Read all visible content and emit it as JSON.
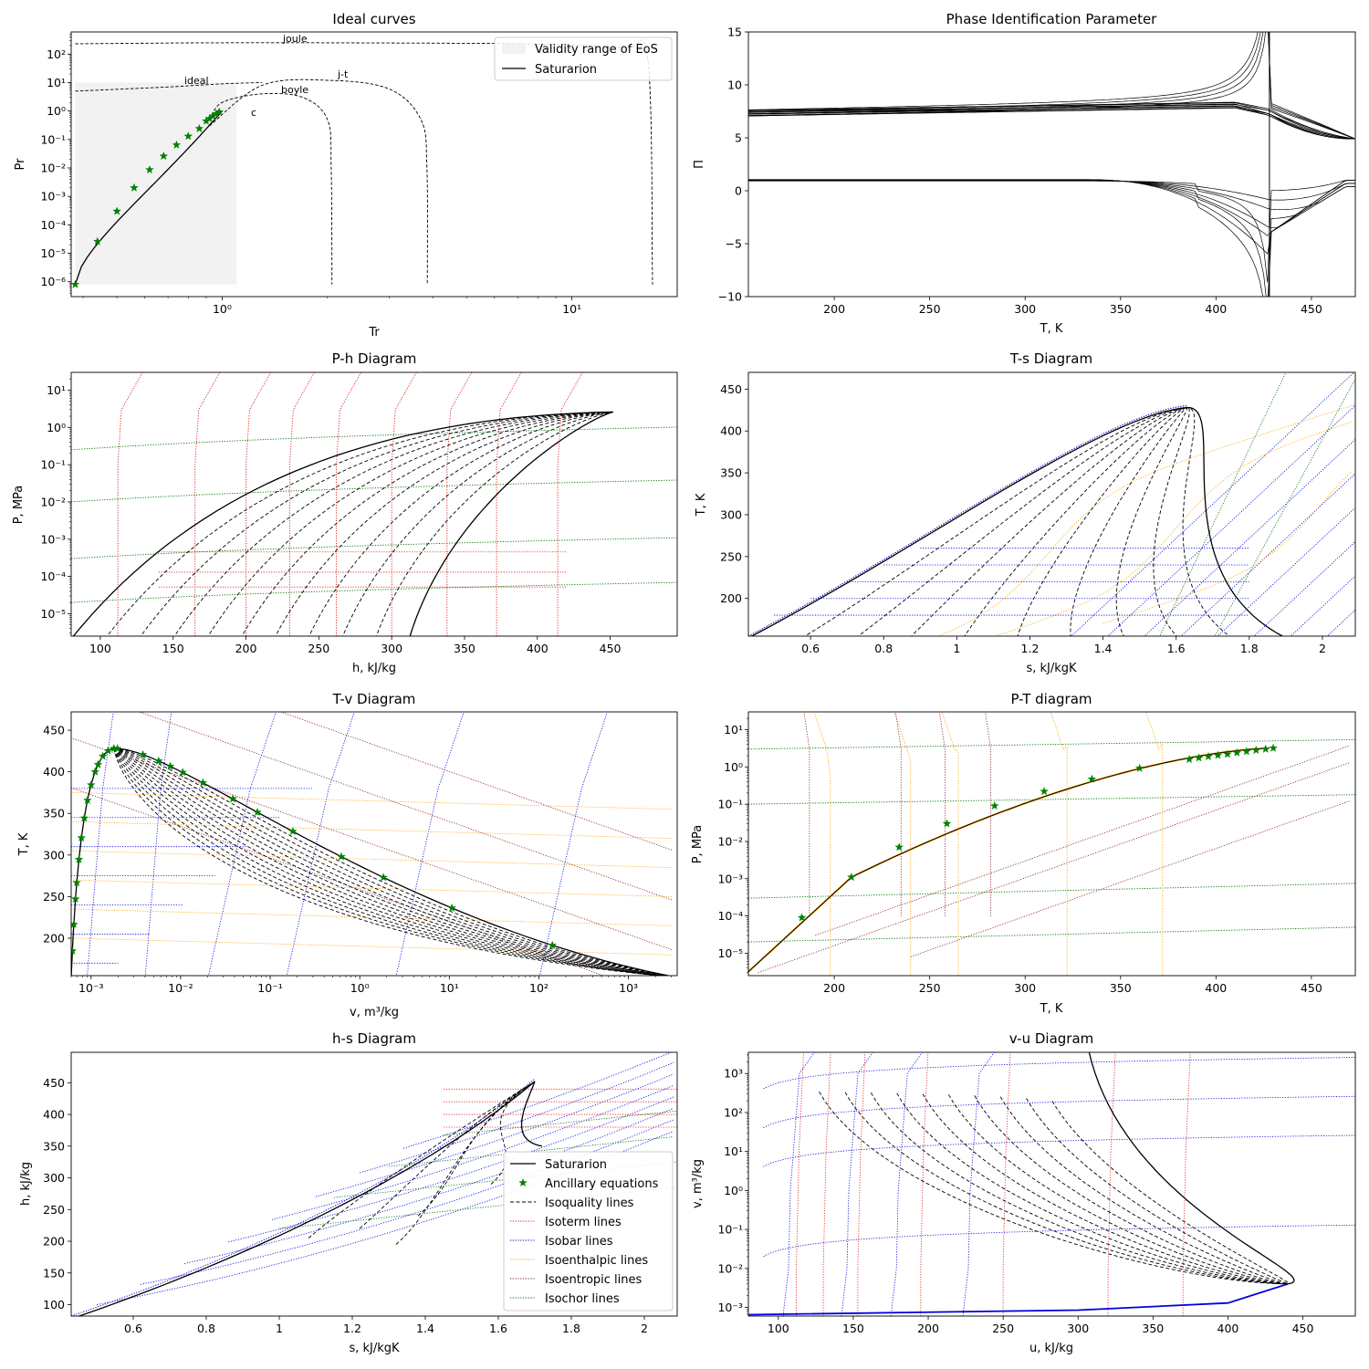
{
  "colors": {
    "saturation": "#000000",
    "ancillary": "#008000",
    "isoquality": "#000000",
    "isotherm": "#e41a1c",
    "isobar": "#0000dd",
    "isenthalpic": "#ffa500",
    "isentropic": "#8b1a1a",
    "isochor": "#007000",
    "validity": "#f2f2f2"
  },
  "chart_data": [
    {
      "id": "ideal",
      "type": "line",
      "title": "Ideal curves",
      "xlabel": "Tr",
      "ylabel": "Pr",
      "xscale": "log",
      "yscale": "log",
      "xlim": [
        0.37,
        20
      ],
      "ylim": [
        3e-07,
        600
      ],
      "xtick_labels": [
        "10⁰",
        "10¹"
      ],
      "ytick_labels": [
        "10⁻⁶",
        "10⁻⁵",
        "10⁻⁴",
        "10⁻³",
        "10⁻²",
        "10⁻¹",
        "10⁰",
        "10¹",
        "10²"
      ],
      "validity_range": {
        "tr": [
          0.38,
          1.1
        ],
        "pr": [
          8e-07,
          10
        ]
      },
      "saturation": {
        "tr_start": 0.38,
        "pr_start": 8e-07,
        "tr_end": 1.0,
        "pr_end": 1.0
      },
      "ancillary_points": {
        "tr": [
          0.38,
          0.44,
          0.5,
          0.56,
          0.62,
          0.68,
          0.74,
          0.8,
          0.86,
          0.9,
          0.92,
          0.94,
          0.96,
          0.98
        ],
        "pr": [
          8e-07,
          2.6e-05,
          0.0003,
          0.002,
          0.0086,
          0.026,
          0.064,
          0.13,
          0.24,
          0.44,
          0.54,
          0.66,
          0.79,
          0.93
        ]
      },
      "curves": [
        {
          "name": "joule",
          "tr": [
            0.38,
            1.0,
            3.0,
            8.0,
            14.0,
            16.5,
            17.0
          ],
          "pr": [
            230,
            250,
            245,
            225,
            160,
            60,
            8e-07
          ]
        },
        {
          "name": "ideal",
          "tr": [
            0.38,
            0.7,
            1.0,
            1.3
          ],
          "pr": [
            5,
            7,
            9,
            10
          ]
        },
        {
          "name": "boyle",
          "tr": [
            0.92,
            1.0,
            1.3,
            1.7,
            2.0,
            2.05,
            2.06
          ],
          "pr": [
            0.5,
            2,
            4,
            3,
            0.5,
            0.01,
            8e-07
          ]
        },
        {
          "name": "j-t",
          "tr": [
            0.92,
            1.3,
            2.0,
            3.0,
            3.7,
            3.85,
            3.86
          ],
          "pr": [
            0.3,
            8,
            12,
            6,
            0.5,
            0.01,
            8e-07
          ]
        }
      ],
      "legend": {
        "location": "upper right",
        "entries": [
          "Validity range of EoS",
          "Saturarion"
        ]
      },
      "annotations": [
        "joule",
        "ideal",
        "j-t",
        "boyle",
        "c"
      ]
    },
    {
      "id": "pip",
      "type": "line",
      "title": "Phase Identification Parameter",
      "xlabel": "T, K",
      "ylabel": "Π",
      "xlim": [
        155,
        473
      ],
      "ylim": [
        -10,
        15
      ],
      "xticks": [
        200,
        250,
        300,
        350,
        400,
        450
      ],
      "yticks": [
        -10,
        -5,
        0,
        5,
        10,
        15
      ],
      "critical_temperature": 428,
      "upper_band_start": [
        7.0,
        7.6
      ],
      "lower_band_value": 1.0
    },
    {
      "id": "ph",
      "type": "line",
      "title": "P-h Diagram",
      "xlabel": "h, kJ/kg",
      "ylabel": "P, MPa",
      "yscale": "log",
      "xlim": [
        80,
        496
      ],
      "ylim": [
        2.5e-06,
        30
      ],
      "xticks": [
        100,
        150,
        200,
        250,
        300,
        350,
        400,
        450
      ],
      "ytick_labels": [
        "10⁻⁵",
        "10⁻⁴",
        "10⁻³",
        "10⁻²",
        "10⁻¹",
        "10⁰",
        "10¹"
      ],
      "critical_point": {
        "h": 452,
        "p": 2.6
      }
    },
    {
      "id": "ts",
      "type": "line",
      "title": "T-s Diagram",
      "xlabel": "s, kJ/kgK",
      "ylabel": "T, K",
      "xlim": [
        0.43,
        2.09
      ],
      "ylim": [
        155,
        470
      ],
      "xticks": [
        0.6,
        0.8,
        1.0,
        1.2,
        1.4,
        1.6,
        1.8,
        2.0
      ],
      "yticks": [
        200,
        250,
        300,
        350,
        400,
        450
      ],
      "critical_point": {
        "s": 1.63,
        "t": 428
      }
    },
    {
      "id": "tv",
      "type": "line",
      "title": "T-v Diagram",
      "xlabel": "v, m³/kg",
      "ylabel": "T, K",
      "xscale": "log",
      "xlim": [
        0.0006,
        3500
      ],
      "ylim": [
        155,
        472
      ],
      "xtick_labels": [
        "10⁻³",
        "10⁻²",
        "10⁻¹",
        "10⁰",
        "10¹",
        "10²",
        "10³"
      ],
      "yticks": [
        200,
        250,
        300,
        350,
        400,
        450
      ],
      "critical_point": {
        "v": 0.0018,
        "t": 428
      },
      "ancillary_vapor_v": [
        0.002,
        0.0036,
        0.0055,
        0.0075,
        0.0099,
        0.019,
        0.037,
        0.075,
        0.2,
        0.55,
        2.0,
        11.0,
        125.0
      ]
    },
    {
      "id": "pt",
      "type": "line",
      "title": "P-T diagram",
      "xlabel": "T, K",
      "ylabel": "P, MPa",
      "yscale": "log",
      "xlim": [
        155,
        473
      ],
      "ylim": [
        2.5e-06,
        30
      ],
      "xticks": [
        200,
        250,
        300,
        350,
        400,
        450
      ],
      "ytick_labels": [
        "10⁻⁵",
        "10⁻⁴",
        "10⁻³",
        "10⁻²",
        "10⁻¹",
        "10⁰",
        "10¹"
      ],
      "ancillary_points": {
        "t": [
          183,
          209,
          234,
          259,
          284,
          310,
          335,
          360,
          386,
          391,
          396,
          401,
          406,
          411,
          416,
          421,
          426,
          430
        ],
        "p": [
          9e-05,
          0.0011,
          0.007,
          0.03,
          0.09,
          0.22,
          0.47,
          0.92,
          1.6,
          1.75,
          1.9,
          2.05,
          2.2,
          2.4,
          2.6,
          2.8,
          3.0,
          3.2
        ]
      }
    },
    {
      "id": "hs",
      "type": "line",
      "title": "h-s Diagram",
      "xlabel": "s, kJ/kgK",
      "ylabel": "h, kJ/kg",
      "xlim": [
        0.43,
        2.09
      ],
      "ylim": [
        82,
        498
      ],
      "xticks": [
        0.6,
        0.8,
        1.0,
        1.2,
        1.4,
        1.6,
        1.8,
        2.0
      ],
      "yticks": [
        100,
        150,
        200,
        250,
        300,
        350,
        400,
        450
      ],
      "critical_point": {
        "s": 1.7,
        "h": 452
      },
      "legend": {
        "location": "lower right",
        "entries": [
          "Saturarion",
          "Ancillary equations",
          "Isoquality lines",
          "Isoterm lines",
          "Isobar lines",
          "Isoenthalpic lines",
          "Isoentropic lines",
          "Isochor lines"
        ]
      }
    },
    {
      "id": "vu",
      "type": "line",
      "title": "v-u Diagram",
      "xlabel": "u, kJ/kg",
      "ylabel": "v, m³/kg",
      "yscale": "log",
      "xlim": [
        80,
        485
      ],
      "ylim": [
        0.0006,
        3500
      ],
      "xticks": [
        100,
        150,
        200,
        250,
        300,
        350,
        400,
        450
      ],
      "ytick_labels": [
        "10⁻³",
        "10⁻²",
        "10⁻¹",
        "10⁰",
        "10¹",
        "10²",
        "10³"
      ],
      "critical_point": {
        "u": 440,
        "v": 0.004
      }
    }
  ]
}
